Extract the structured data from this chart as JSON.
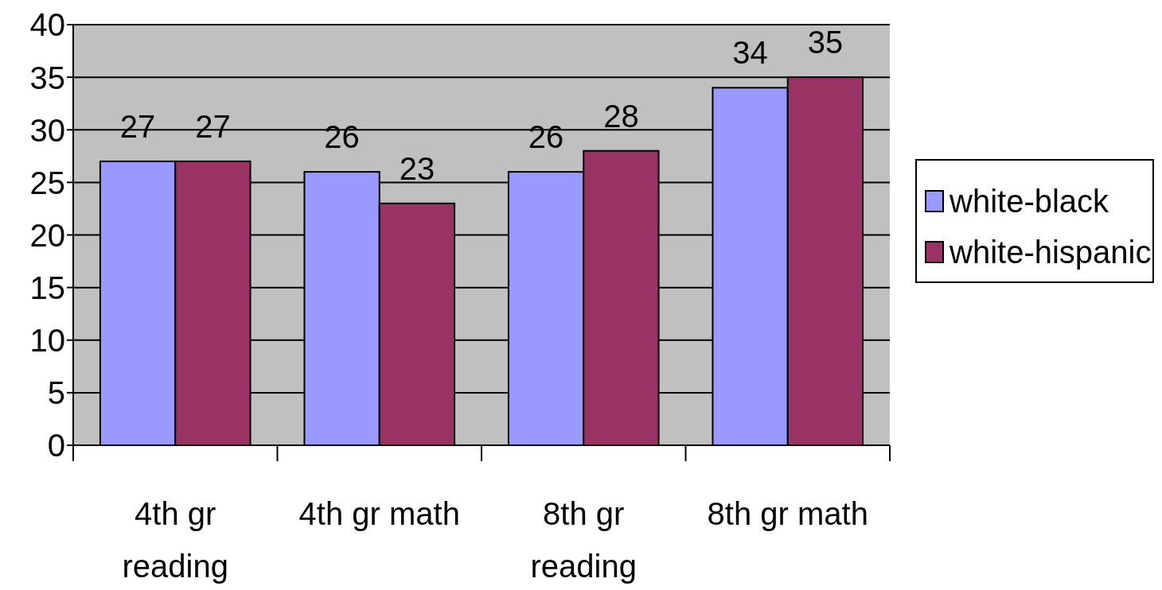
{
  "chart_data": {
    "type": "bar",
    "categories": [
      "4th gr reading",
      "4th gr math",
      "8th gr reading",
      "8th gr math"
    ],
    "series": [
      {
        "name": "white-black",
        "color": "#9999ff",
        "values": [
          27,
          26,
          26,
          34
        ]
      },
      {
        "name": "white-hispanic",
        "color": "#993366",
        "values": [
          27,
          23,
          28,
          35
        ]
      }
    ],
    "ylim": [
      0,
      40
    ],
    "yticks": [
      0,
      5,
      10,
      15,
      20,
      25,
      30,
      35,
      40
    ],
    "grid": "y",
    "legend": "right",
    "data_labels": true
  }
}
